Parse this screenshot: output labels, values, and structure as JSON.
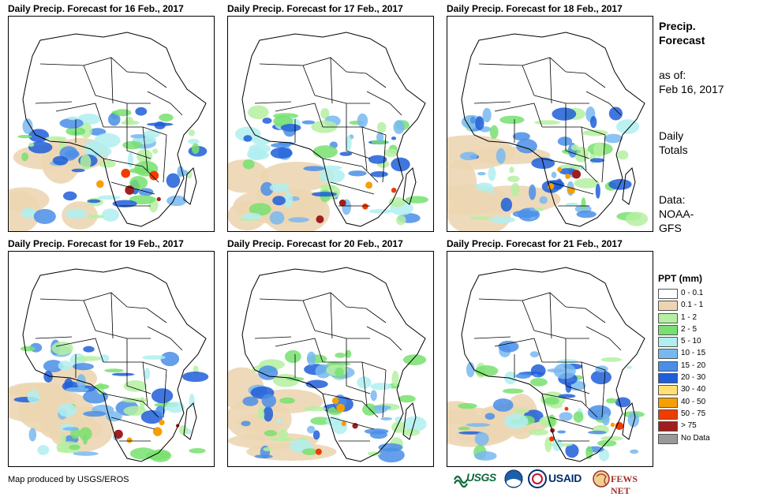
{
  "panels": [
    {
      "title": "Daily Precip. Forecast for 16 Feb., 2017"
    },
    {
      "title": "Daily Precip. Forecast for 17 Feb., 2017"
    },
    {
      "title": "Daily Precip. Forecast for 18 Feb., 2017"
    },
    {
      "title": "Daily Precip. Forecast for 19 Feb., 2017"
    },
    {
      "title": "Daily Precip. Forecast for 20 Feb., 2017"
    },
    {
      "title": "Daily Precip. Forecast for 21 Feb., 2017"
    }
  ],
  "side": {
    "title_line1": "Precip.",
    "title_line2": "Forecast",
    "asof_label": "as of:",
    "asof_date": "Feb 16, 2017",
    "totals_line1": "Daily",
    "totals_line2": "Totals",
    "data_label": "Data:",
    "data_line1": "NOAA-",
    "data_line2": "GFS"
  },
  "legend": {
    "title": "PPT (mm)",
    "items": [
      {
        "label": "0 - 0.1",
        "color": "#ffffff"
      },
      {
        "label": "0.1 - 1",
        "color": "#ecd6b2"
      },
      {
        "label": "1 - 2",
        "color": "#b4f0a0"
      },
      {
        "label": "2 - 5",
        "color": "#78e070"
      },
      {
        "label": "5 - 10",
        "color": "#b0eef0"
      },
      {
        "label": "10 - 15",
        "color": "#78b8f0"
      },
      {
        "label": "15 - 20",
        "color": "#4a8ee8"
      },
      {
        "label": "20 - 30",
        "color": "#1e5ed8"
      },
      {
        "label": "30 - 40",
        "color": "#ffe070"
      },
      {
        "label": "40 - 50",
        "color": "#f5a000"
      },
      {
        "label": "50 - 75",
        "color": "#f03c00"
      },
      {
        "label": "> 75",
        "color": "#a01e1e"
      },
      {
        "label": "No Data",
        "color": "#999999"
      }
    ]
  },
  "credit": "Map produced by USGS/EROS",
  "logos": {
    "usgs": "USGS",
    "usaid": "USAID",
    "fews": "FEWS NET"
  }
}
